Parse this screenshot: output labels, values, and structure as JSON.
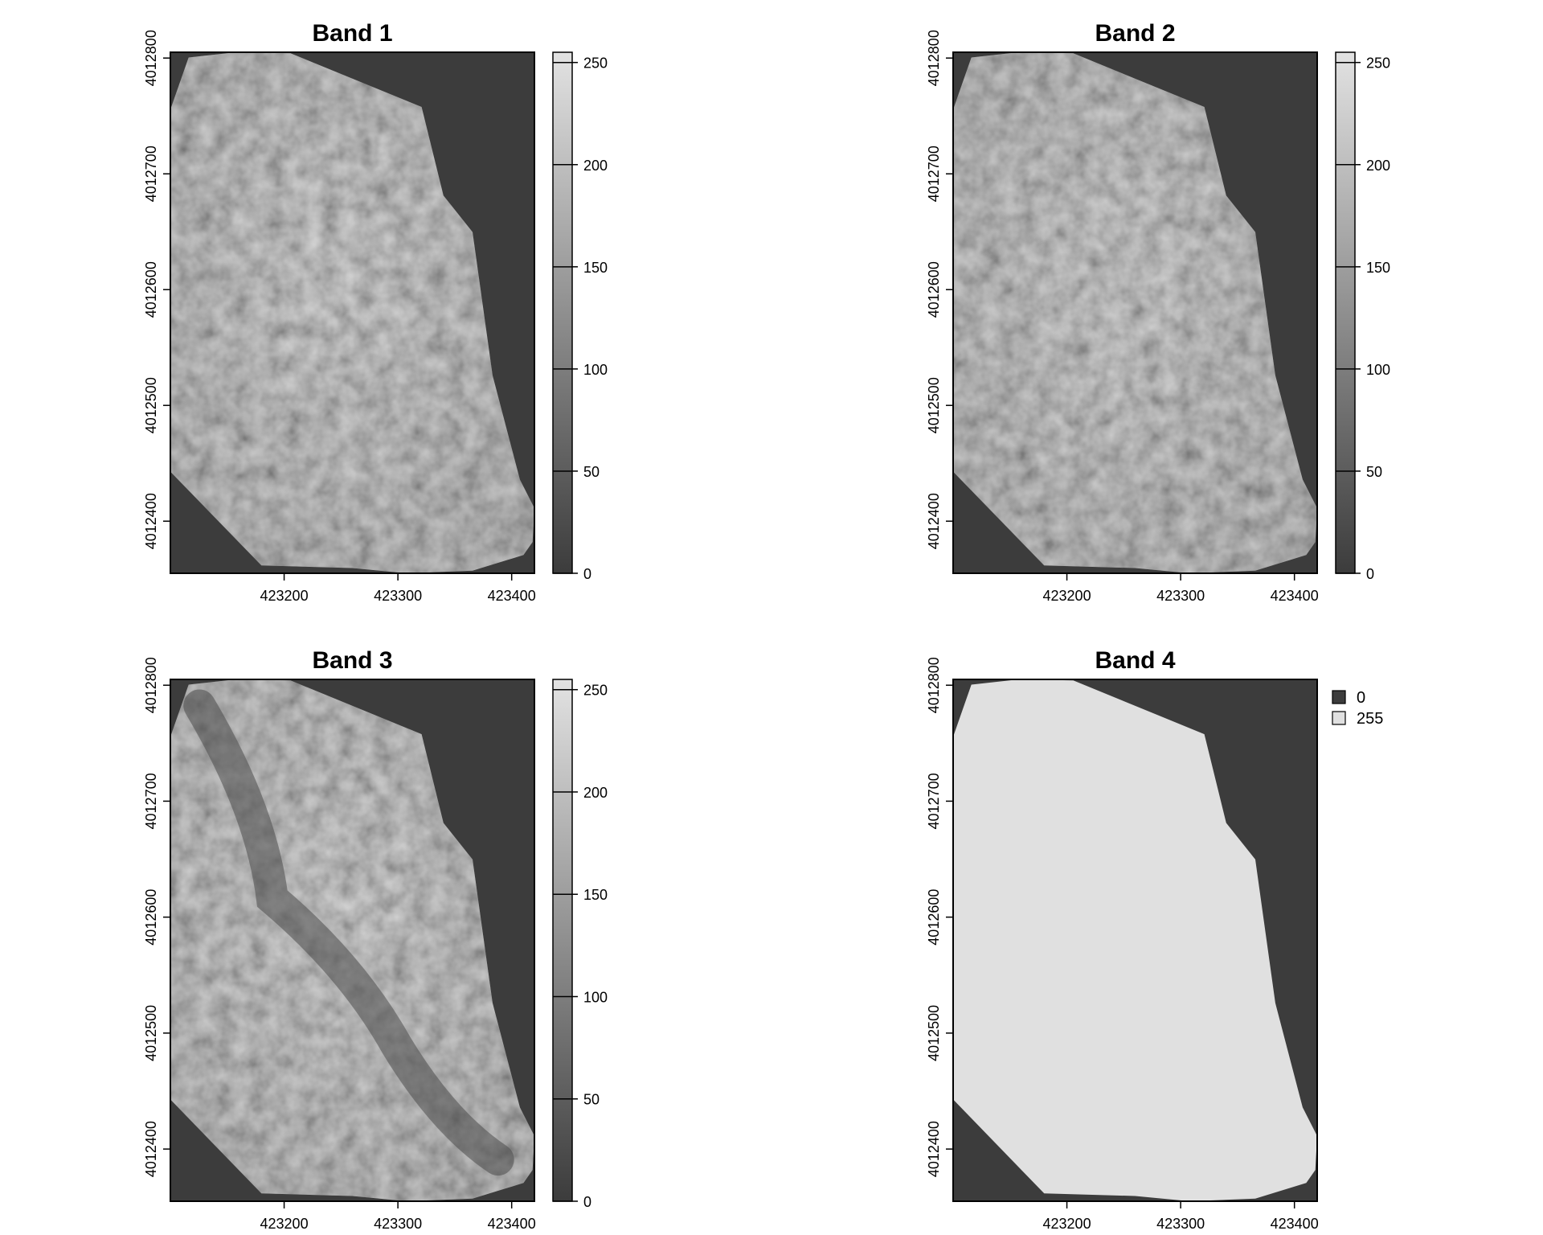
{
  "colors": {
    "background": "#ffffff",
    "nodata": "#3c3c3c",
    "scale_low": "#3c3c3c",
    "scale_high": "#e2e2e2",
    "band4_valid": "#e0e0e0",
    "frame": "#000000"
  },
  "chart_data": [
    {
      "type": "heatmap",
      "title": "Band 1",
      "xlim": [
        423100,
        423420
      ],
      "ylim": [
        4012355,
        4012805
      ],
      "x_ticks": [
        "423200",
        "423300",
        "423400"
      ],
      "y_ticks": [
        "4012400",
        "4012500",
        "4012600",
        "4012700",
        "4012800"
      ],
      "legend": {
        "kind": "continuous",
        "range": [
          0,
          255
        ],
        "ticks": [
          "0",
          "50",
          "100",
          "150",
          "200",
          "250"
        ]
      }
    },
    {
      "type": "heatmap",
      "title": "Band 2",
      "xlim": [
        423100,
        423420
      ],
      "ylim": [
        4012355,
        4012805
      ],
      "x_ticks": [
        "423200",
        "423300",
        "423400"
      ],
      "y_ticks": [
        "4012400",
        "4012500",
        "4012600",
        "4012700",
        "4012800"
      ],
      "legend": {
        "kind": "continuous",
        "range": [
          0,
          255
        ],
        "ticks": [
          "0",
          "50",
          "100",
          "150",
          "200",
          "250"
        ]
      }
    },
    {
      "type": "heatmap",
      "title": "Band 3",
      "xlim": [
        423100,
        423420
      ],
      "ylim": [
        4012355,
        4012805
      ],
      "x_ticks": [
        "423200",
        "423300",
        "423400"
      ],
      "y_ticks": [
        "4012400",
        "4012500",
        "4012600",
        "4012700",
        "4012800"
      ],
      "legend": {
        "kind": "continuous",
        "range": [
          0,
          255
        ],
        "ticks": [
          "0",
          "50",
          "100",
          "150",
          "200",
          "250"
        ]
      }
    },
    {
      "type": "heatmap",
      "title": "Band 4",
      "xlim": [
        423100,
        423420
      ],
      "ylim": [
        4012355,
        4012805
      ],
      "x_ticks": [
        "423200",
        "423300",
        "423400"
      ],
      "y_ticks": [
        "4012400",
        "4012500",
        "4012600",
        "4012700",
        "4012800"
      ],
      "legend": {
        "kind": "categorical",
        "entries": [
          {
            "label": "0",
            "color": "#3c3c3c"
          },
          {
            "label": "255",
            "color": "#e0e0e0"
          }
        ]
      }
    }
  ]
}
